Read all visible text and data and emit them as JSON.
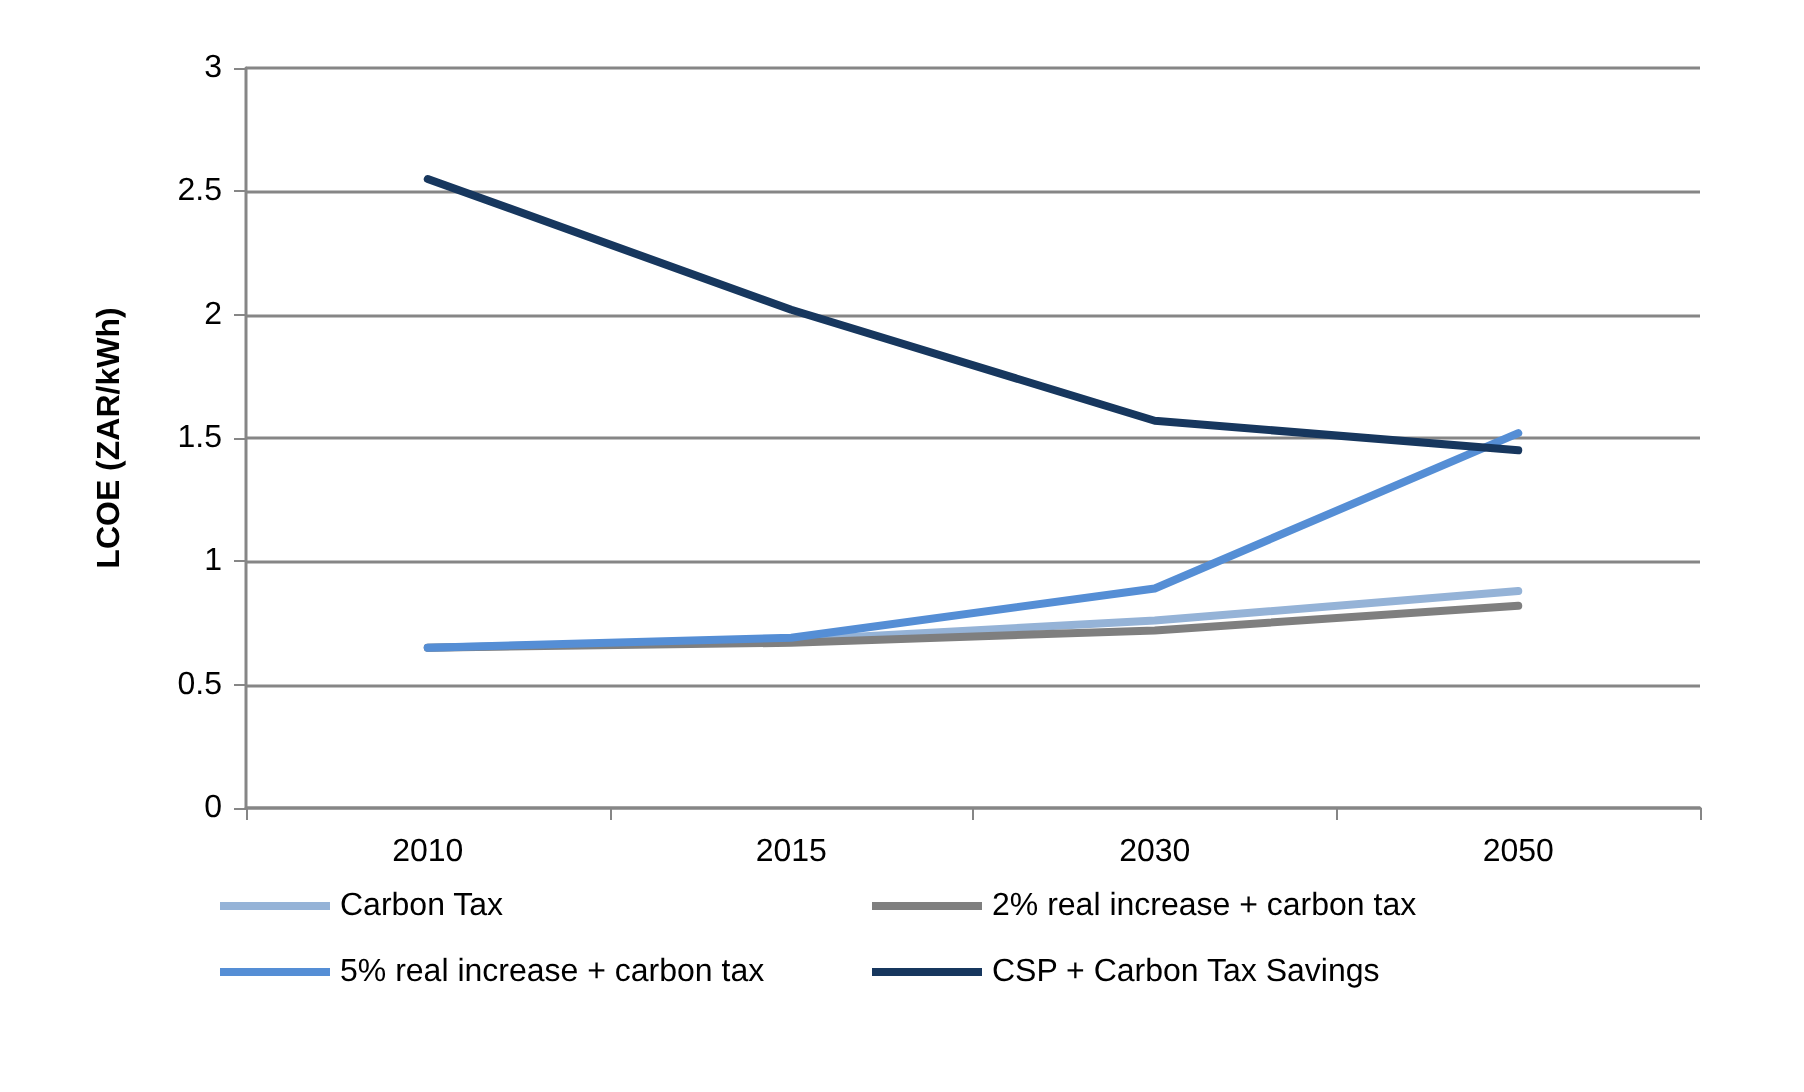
{
  "chart_data": {
    "type": "line",
    "ylabel": "LCOE (ZAR/kWh)",
    "categories": [
      "2010",
      "2015",
      "2030",
      "2050"
    ],
    "series": [
      {
        "name": "Carbon Tax",
        "color": "#95b3d7",
        "values": [
          0.65,
          0.68,
          0.76,
          0.88
        ]
      },
      {
        "name": "2% real increase + carbon tax",
        "color": "#7f7f7f",
        "values": [
          0.65,
          0.67,
          0.72,
          0.82
        ]
      },
      {
        "name": "5% real increase + carbon tax",
        "color": "#558ed5",
        "values": [
          0.65,
          0.69,
          0.89,
          1.52
        ]
      },
      {
        "name": "CSP + Carbon Tax Savings",
        "color": "#17375e",
        "values": [
          2.55,
          2.02,
          1.57,
          1.45
        ]
      }
    ],
    "ylim": [
      0,
      3
    ],
    "yticks": [
      0,
      0.5,
      1,
      1.5,
      2,
      2.5,
      3
    ],
    "grid": "y",
    "legend": "bottom",
    "marker": "none",
    "line_style": "solid"
  }
}
